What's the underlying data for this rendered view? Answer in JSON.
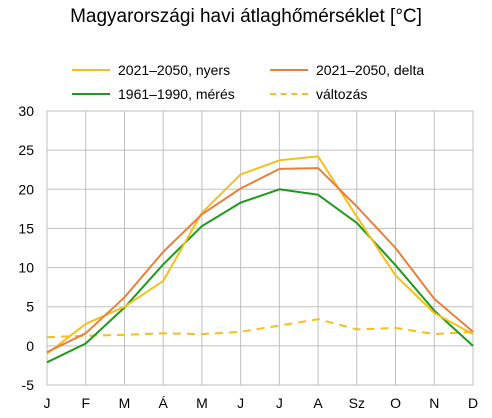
{
  "chart_data": {
    "type": "line",
    "title": "Magyarországi havi átlaghőmérséklet [°C]",
    "categories": [
      "J",
      "F",
      "M",
      "Á",
      "M",
      "J",
      "J",
      "A",
      "Sz",
      "O",
      "N",
      "D"
    ],
    "ylim": [
      -5,
      30
    ],
    "yticks": [
      -5,
      0,
      5,
      10,
      15,
      20,
      25,
      30
    ],
    "grid": true,
    "legend_position": "top",
    "series": [
      {
        "name": "2021–2050, nyers",
        "color": "#f5c01b",
        "style": "solid",
        "values": [
          -1.0,
          2.8,
          5.0,
          8.3,
          17.0,
          21.9,
          23.7,
          24.2,
          16.5,
          9.0,
          4.2,
          1.5
        ]
      },
      {
        "name": "2021–2050, delta",
        "color": "#e8803a",
        "style": "solid",
        "values": [
          -0.8,
          1.6,
          6.2,
          12.0,
          16.8,
          20.1,
          22.6,
          22.7,
          17.8,
          12.5,
          6.0,
          1.8
        ]
      },
      {
        "name": "1961–1990, mérés",
        "color": "#1f9a1f",
        "style": "solid",
        "values": [
          -2.1,
          0.3,
          4.9,
          10.4,
          15.3,
          18.3,
          20.0,
          19.3,
          15.7,
          10.3,
          4.5,
          0.0
        ]
      },
      {
        "name": "változás",
        "color": "#f5c01b",
        "style": "dashed",
        "values": [
          1.1,
          1.3,
          1.4,
          1.6,
          1.5,
          1.8,
          2.6,
          3.4,
          2.1,
          2.3,
          1.5,
          1.8
        ]
      }
    ]
  }
}
